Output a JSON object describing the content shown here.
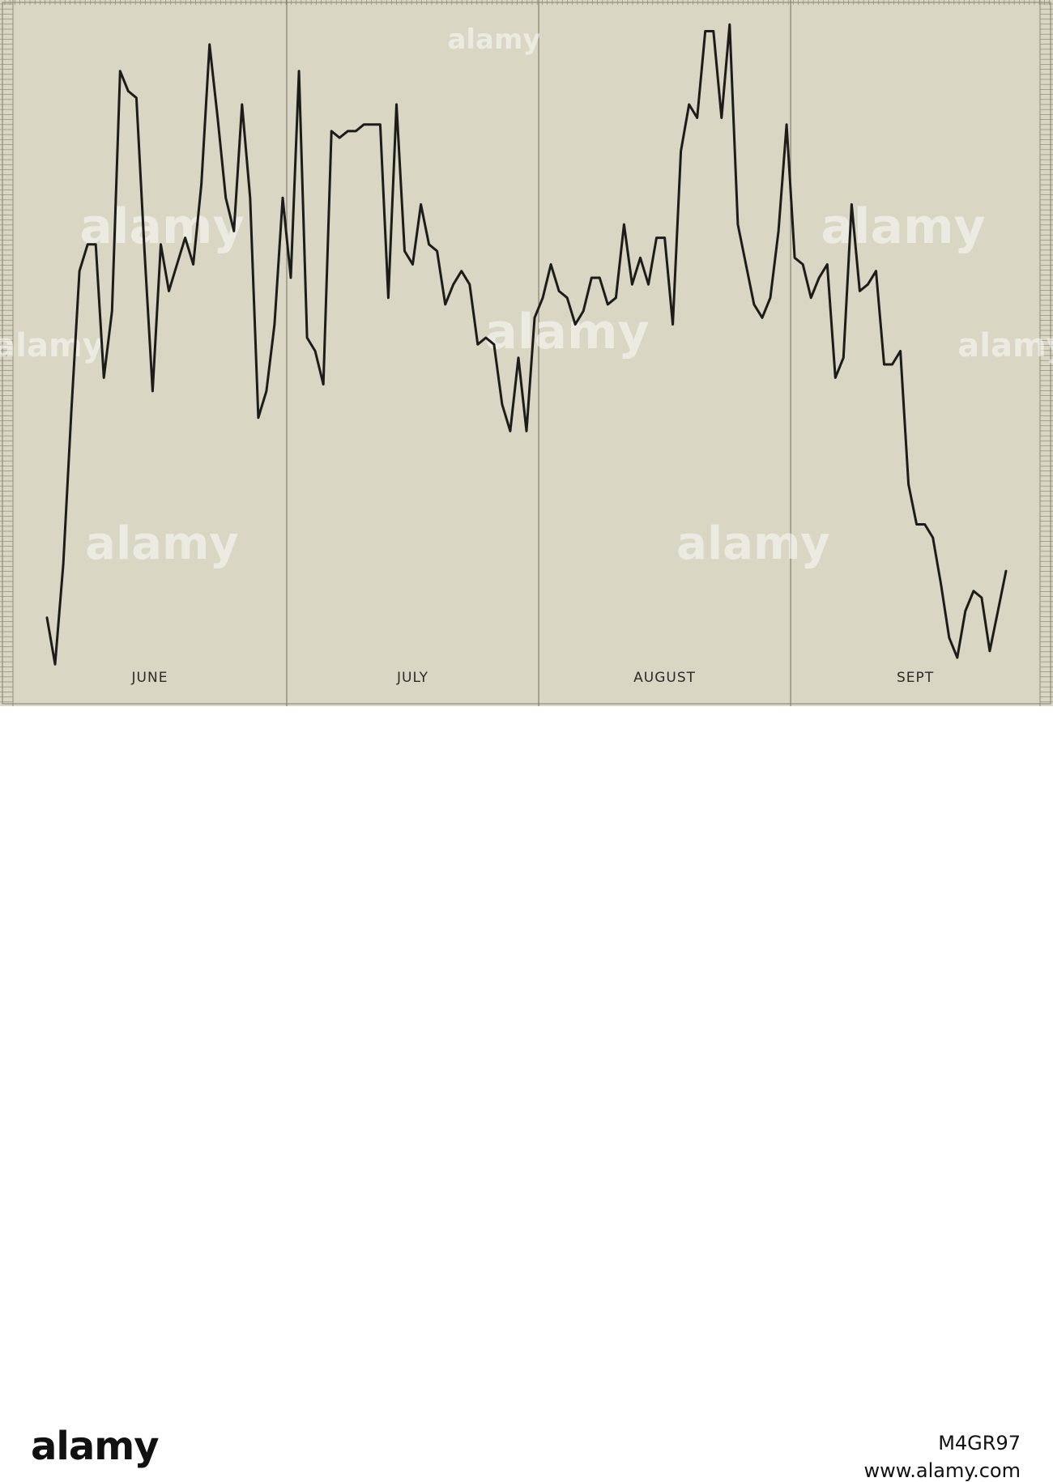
{
  "chart_data": {
    "type": "line",
    "title": "",
    "xlabel": "",
    "ylabel": "",
    "month_labels": [
      "JUNE",
      "JULY",
      "AUGUST",
      "SEPT"
    ],
    "month_day_counts": [
      30,
      31,
      31,
      19
    ],
    "grid": "fine graph-paper grid along frame edges, vertical month divider lines",
    "ylim": [
      0,
      100
    ],
    "series": [
      {
        "values": [
          10,
          3,
          18,
          41,
          62,
          66,
          66,
          46,
          56,
          92,
          89,
          88,
          65,
          44,
          66,
          59,
          63,
          67,
          63,
          75,
          96,
          85,
          73,
          68,
          87,
          73,
          40,
          44,
          54,
          73,
          61,
          92,
          52,
          50,
          45,
          83,
          82,
          83,
          83,
          84,
          84,
          84,
          58,
          87,
          65,
          63,
          72,
          66,
          65,
          57,
          60,
          62,
          60,
          51,
          52,
          51,
          42,
          38,
          49,
          38,
          55,
          58,
          63,
          59,
          58,
          54,
          56,
          61,
          61,
          57,
          58,
          69,
          60,
          64,
          60,
          67,
          67,
          54,
          80,
          87,
          85,
          98,
          98,
          85,
          99,
          69,
          63,
          57,
          55,
          58,
          68,
          84,
          64,
          63,
          58,
          61,
          63,
          46,
          49,
          72,
          59,
          60,
          62,
          48,
          48,
          50,
          30,
          24,
          24,
          22,
          15,
          7,
          4,
          11,
          14,
          13,
          5,
          11,
          17
        ]
      }
    ]
  },
  "watermark": {
    "brand": "alamy",
    "image_id": "M4GR97",
    "site": "www.alamy.com"
  }
}
